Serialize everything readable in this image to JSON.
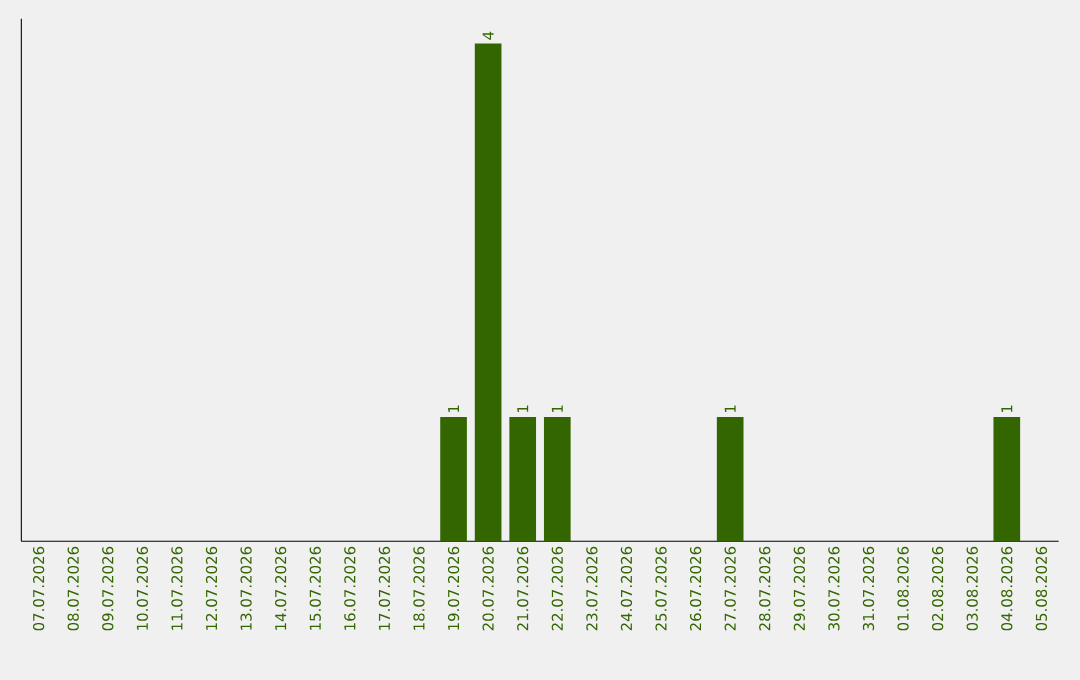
{
  "chart_data": {
    "type": "bar",
    "categories": [
      "07.07.2026",
      "08.07.2026",
      "09.07.2026",
      "10.07.2026",
      "11.07.2026",
      "12.07.2026",
      "13.07.2026",
      "14.07.2026",
      "15.07.2026",
      "16.07.2026",
      "17.07.2026",
      "18.07.2026",
      "19.07.2026",
      "20.07.2026",
      "21.07.2026",
      "22.07.2026",
      "23.07.2026",
      "24.07.2026",
      "25.07.2026",
      "26.07.2026",
      "27.07.2026",
      "28.07.2026",
      "29.07.2026",
      "30.07.2026",
      "31.07.2026",
      "01.08.2026",
      "02.08.2026",
      "03.08.2026",
      "04.08.2026",
      "05.08.2026"
    ],
    "values": [
      null,
      null,
      null,
      null,
      null,
      null,
      null,
      null,
      null,
      null,
      null,
      null,
      1,
      4,
      1,
      1,
      null,
      null,
      null,
      null,
      1,
      null,
      null,
      null,
      null,
      null,
      null,
      null,
      1,
      null
    ],
    "data_labels": true,
    "color": "#336600"
  }
}
